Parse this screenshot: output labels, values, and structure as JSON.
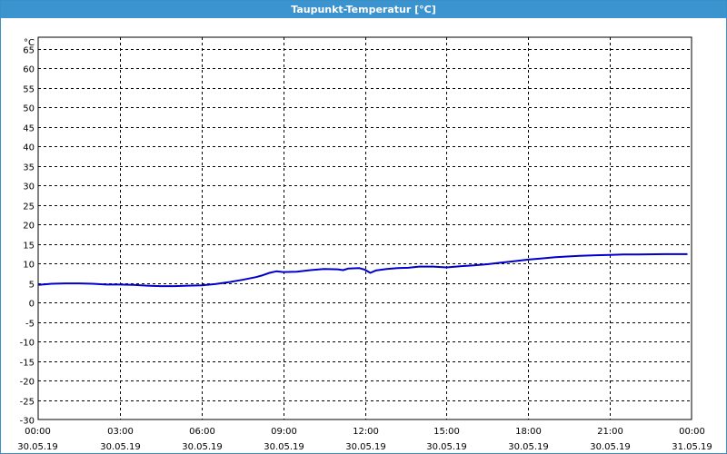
{
  "window": {
    "title": "Taupunkt-Temperatur [°C]"
  },
  "chart_data": {
    "type": "line",
    "title": "Taupunkt-Temperatur [°C]",
    "unit_label": "°C",
    "ylim": [
      -30,
      68
    ],
    "yticks": [
      65,
      60,
      55,
      50,
      45,
      40,
      35,
      30,
      25,
      20,
      15,
      10,
      5,
      0,
      -5,
      -10,
      -15,
      -20,
      -25,
      -30
    ],
    "x_range_hours": [
      0,
      24
    ],
    "xticks": [
      {
        "time": "00:00",
        "date": "30.05.19"
      },
      {
        "time": "03:00",
        "date": "30.05.19"
      },
      {
        "time": "06:00",
        "date": "30.05.19"
      },
      {
        "time": "09:00",
        "date": "30.05.19"
      },
      {
        "time": "12:00",
        "date": "30.05.19"
      },
      {
        "time": "15:00",
        "date": "30.05.19"
      },
      {
        "time": "18:00",
        "date": "30.05.19"
      },
      {
        "time": "21:00",
        "date": "30.05.19"
      },
      {
        "time": "00:00",
        "date": "31.05.19"
      }
    ],
    "grid": true,
    "series": [
      {
        "color": "#0000cc",
        "points": [
          [
            0.0,
            4.5
          ],
          [
            0.5,
            4.8
          ],
          [
            1.0,
            4.9
          ],
          [
            1.5,
            4.9
          ],
          [
            2.0,
            4.8
          ],
          [
            2.5,
            4.6
          ],
          [
            3.0,
            4.6
          ],
          [
            3.5,
            4.5
          ],
          [
            4.0,
            4.3
          ],
          [
            4.5,
            4.2
          ],
          [
            5.0,
            4.2
          ],
          [
            5.5,
            4.3
          ],
          [
            6.0,
            4.4
          ],
          [
            6.5,
            4.7
          ],
          [
            7.0,
            5.2
          ],
          [
            7.5,
            5.8
          ],
          [
            8.0,
            6.5
          ],
          [
            8.25,
            7.0
          ],
          [
            8.5,
            7.6
          ],
          [
            8.75,
            8.0
          ],
          [
            9.0,
            7.8
          ],
          [
            9.5,
            7.9
          ],
          [
            10.0,
            8.3
          ],
          [
            10.5,
            8.6
          ],
          [
            11.0,
            8.5
          ],
          [
            11.2,
            8.3
          ],
          [
            11.4,
            8.7
          ],
          [
            11.8,
            8.8
          ],
          [
            12.0,
            8.4
          ],
          [
            12.2,
            7.6
          ],
          [
            12.4,
            8.2
          ],
          [
            12.8,
            8.6
          ],
          [
            13.2,
            8.8
          ],
          [
            13.6,
            8.9
          ],
          [
            14.0,
            9.2
          ],
          [
            14.5,
            9.2
          ],
          [
            15.0,
            9.0
          ],
          [
            15.5,
            9.3
          ],
          [
            16.0,
            9.5
          ],
          [
            16.5,
            9.8
          ],
          [
            17.0,
            10.2
          ],
          [
            17.5,
            10.6
          ],
          [
            18.0,
            11.0
          ],
          [
            18.5,
            11.3
          ],
          [
            19.0,
            11.6
          ],
          [
            19.5,
            11.8
          ],
          [
            20.0,
            12.0
          ],
          [
            20.5,
            12.1
          ],
          [
            21.0,
            12.2
          ],
          [
            21.5,
            12.3
          ],
          [
            22.0,
            12.3
          ],
          [
            23.0,
            12.4
          ],
          [
            23.85,
            12.4
          ]
        ]
      }
    ]
  }
}
